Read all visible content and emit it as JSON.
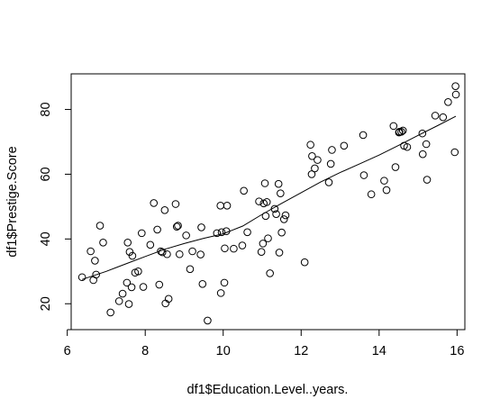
{
  "chart_data": {
    "type": "scatter",
    "title": "",
    "xlabel": "df1$Education.Level..years.",
    "ylabel": "df1$Prestige.Score",
    "xlim": [
      6.1,
      16.2
    ],
    "ylim": [
      12,
      91
    ],
    "grid": false,
    "x_ticks": [
      6,
      8,
      10,
      12,
      14,
      16
    ],
    "x_tick_labels": [
      "6",
      "8",
      "10",
      "12",
      "14",
      "16"
    ],
    "y_ticks": [
      20,
      40,
      60,
      80
    ],
    "y_tick_labels": [
      "20",
      "40",
      "60",
      "80"
    ],
    "series": [
      {
        "kind": "points",
        "marker": "open-circle",
        "points": [
          [
            6.38,
            28.2
          ],
          [
            6.6,
            36.2
          ],
          [
            6.67,
            27.3
          ],
          [
            6.71,
            33.3
          ],
          [
            6.74,
            29.0
          ],
          [
            6.84,
            44.1
          ],
          [
            6.92,
            38.9
          ],
          [
            7.11,
            17.3
          ],
          [
            7.33,
            20.8
          ],
          [
            7.42,
            23.1
          ],
          [
            7.53,
            26.5
          ],
          [
            7.55,
            38.9
          ],
          [
            7.58,
            19.9
          ],
          [
            7.6,
            36.0
          ],
          [
            7.65,
            25.1
          ],
          [
            7.67,
            34.8
          ],
          [
            7.74,
            29.6
          ],
          [
            7.82,
            30.0
          ],
          [
            7.91,
            41.8
          ],
          [
            7.95,
            25.2
          ],
          [
            8.13,
            38.2
          ],
          [
            8.22,
            51.1
          ],
          [
            8.31,
            42.9
          ],
          [
            8.36,
            25.9
          ],
          [
            8.4,
            36.2
          ],
          [
            8.44,
            35.9
          ],
          [
            8.5,
            48.9
          ],
          [
            8.52,
            20.1
          ],
          [
            8.56,
            35.3
          ],
          [
            8.6,
            21.5
          ],
          [
            8.78,
            50.8
          ],
          [
            8.81,
            43.8
          ],
          [
            8.84,
            44.1
          ],
          [
            8.88,
            35.3
          ],
          [
            9.05,
            41.1
          ],
          [
            9.15,
            30.7
          ],
          [
            9.21,
            36.2
          ],
          [
            9.42,
            35.2
          ],
          [
            9.44,
            43.6
          ],
          [
            9.47,
            26.1
          ],
          [
            9.6,
            14.8
          ],
          [
            9.84,
            41.8
          ],
          [
            9.93,
            50.3
          ],
          [
            9.94,
            23.3
          ],
          [
            9.96,
            42.1
          ],
          [
            10.03,
            26.5
          ],
          [
            10.04,
            37.1
          ],
          [
            10.08,
            42.4
          ],
          [
            10.1,
            50.3
          ],
          [
            10.27,
            37.0
          ],
          [
            10.49,
            38.0
          ],
          [
            10.53,
            54.9
          ],
          [
            10.62,
            42.1
          ],
          [
            10.92,
            51.6
          ],
          [
            10.98,
            36.0
          ],
          [
            11.02,
            38.6
          ],
          [
            11.04,
            51.0
          ],
          [
            11.07,
            57.2
          ],
          [
            11.09,
            47.1
          ],
          [
            11.12,
            51.4
          ],
          [
            11.15,
            40.2
          ],
          [
            11.2,
            29.4
          ],
          [
            11.32,
            49.3
          ],
          [
            11.36,
            47.7
          ],
          [
            11.42,
            57.0
          ],
          [
            11.44,
            35.8
          ],
          [
            11.47,
            54.1
          ],
          [
            11.5,
            42.0
          ],
          [
            11.56,
            46.1
          ],
          [
            11.6,
            47.3
          ],
          [
            12.09,
            32.8
          ],
          [
            12.24,
            69.1
          ],
          [
            12.27,
            60.0
          ],
          [
            12.28,
            65.6
          ],
          [
            12.35,
            61.8
          ],
          [
            12.42,
            64.4
          ],
          [
            12.71,
            57.5
          ],
          [
            12.76,
            63.2
          ],
          [
            12.79,
            67.5
          ],
          [
            13.1,
            68.8
          ],
          [
            13.59,
            72.1
          ],
          [
            13.61,
            59.7
          ],
          [
            13.8,
            53.8
          ],
          [
            14.13,
            58.0
          ],
          [
            14.19,
            55.1
          ],
          [
            14.37,
            74.9
          ],
          [
            14.42,
            62.2
          ],
          [
            14.51,
            72.9
          ],
          [
            14.52,
            73.1
          ],
          [
            14.57,
            73.1
          ],
          [
            14.61,
            73.5
          ],
          [
            14.64,
            68.8
          ],
          [
            14.72,
            68.4
          ],
          [
            15.11,
            72.6
          ],
          [
            15.12,
            66.2
          ],
          [
            15.21,
            69.3
          ],
          [
            15.23,
            58.3
          ],
          [
            15.44,
            78.1
          ],
          [
            15.64,
            77.6
          ],
          [
            15.77,
            82.3
          ],
          [
            15.94,
            66.8
          ],
          [
            15.96,
            87.2
          ],
          [
            15.97,
            84.6
          ]
        ]
      },
      {
        "kind": "line",
        "smoother": "lowess",
        "points": [
          [
            6.38,
            27.5
          ],
          [
            7.0,
            30.0
          ],
          [
            7.5,
            32.3
          ],
          [
            8.0,
            34.6
          ],
          [
            8.5,
            36.8
          ],
          [
            9.0,
            38.6
          ],
          [
            9.5,
            40.2
          ],
          [
            10.0,
            41.6
          ],
          [
            10.5,
            44.0
          ],
          [
            11.0,
            47.6
          ],
          [
            11.5,
            51.0
          ],
          [
            12.0,
            54.3
          ],
          [
            12.5,
            57.6
          ],
          [
            13.0,
            60.5
          ],
          [
            13.5,
            63.2
          ],
          [
            14.0,
            65.9
          ],
          [
            14.5,
            68.9
          ],
          [
            15.0,
            72.0
          ],
          [
            15.5,
            75.0
          ],
          [
            15.97,
            77.9
          ]
        ]
      }
    ]
  }
}
